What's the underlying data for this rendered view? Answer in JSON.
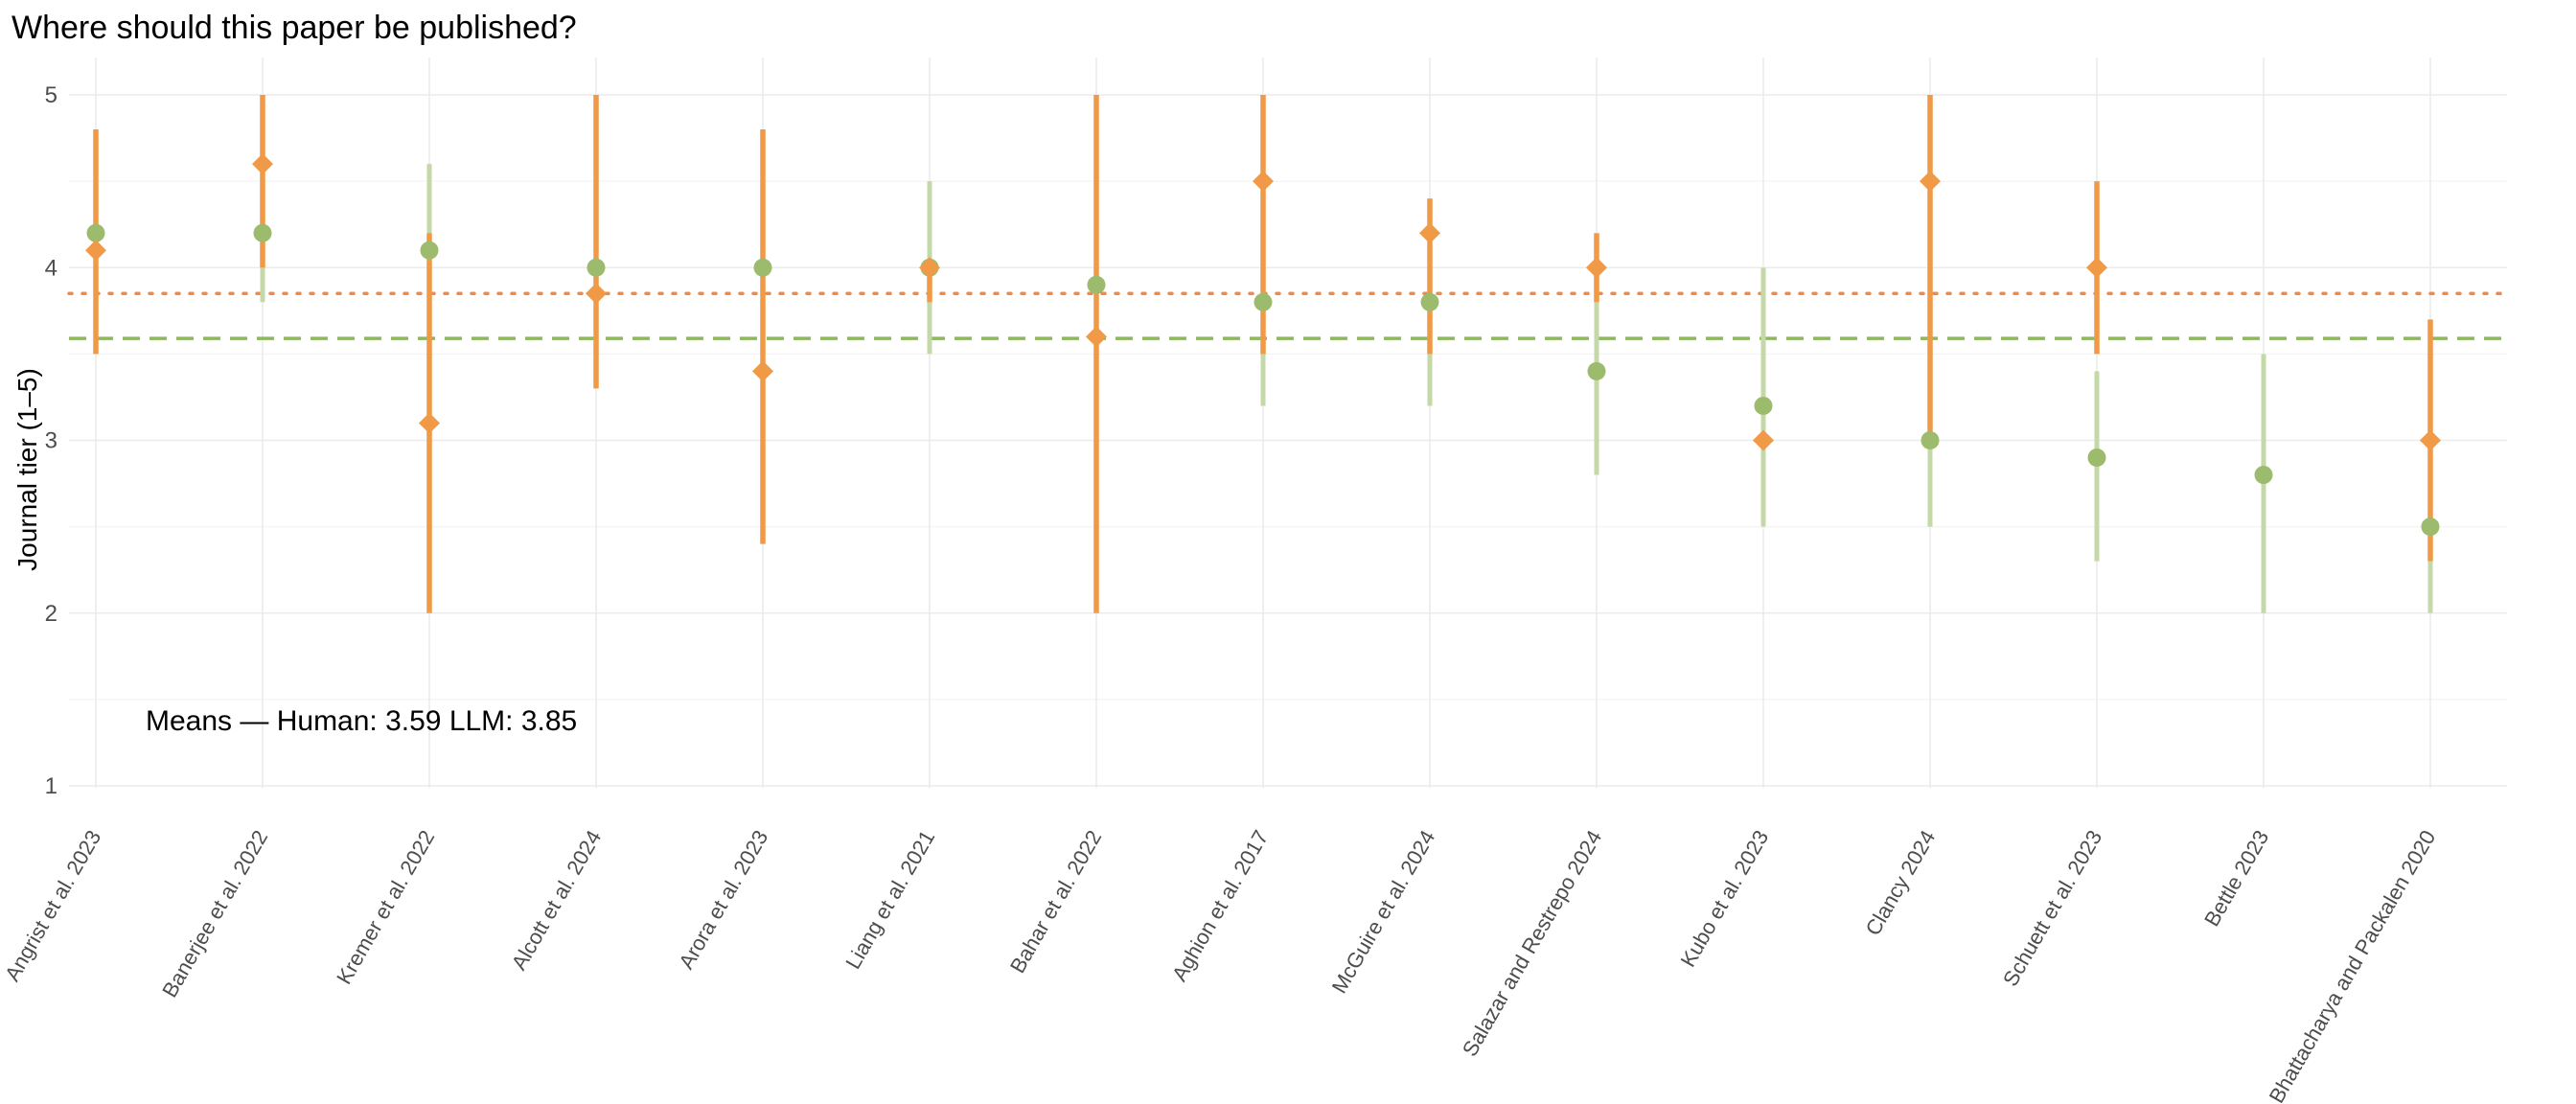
{
  "chart_data": {
    "type": "scatter",
    "title": "Where should this paper be published?",
    "xlabel": "",
    "ylabel": "Journal tier (1–5)",
    "ylim": [
      1,
      5
    ],
    "yticks": [
      "1",
      "2",
      "3",
      "4",
      "5"
    ],
    "grid": true,
    "legend": "none",
    "categories": [
      "Angrist et al. 2023",
      "Banerjee et al. 2022",
      "Kremer et al. 2022",
      "Alcott et al. 2024",
      "Arora et al. 2023",
      "Liang et al. 2021",
      "Bahar et al. 2022",
      "Aghion et al. 2017",
      "McGuire et al. 2024",
      "Salazar and Restrepo 2024",
      "Kubo et al. 2023",
      "Clancy 2024",
      "Schuett et al. 2023",
      "Bettle 2023",
      "Bhattacharya and Packalen 2020"
    ],
    "series": [
      {
        "marker": "circle",
        "color": "#9dbb6c",
        "interval_color": "#c5d9a8",
        "values": [
          4.2,
          4.2,
          4.1,
          4.0,
          4.0,
          4.0,
          3.9,
          3.8,
          3.8,
          3.4,
          3.2,
          3.0,
          2.9,
          2.8,
          2.5
        ],
        "lower": [
          null,
          3.8,
          3.2,
          null,
          null,
          3.5,
          null,
          3.2,
          3.2,
          2.8,
          2.5,
          2.5,
          2.3,
          2.0,
          2.0
        ],
        "upper": [
          null,
          4.2,
          4.6,
          null,
          null,
          4.5,
          null,
          4.0,
          4.0,
          4.0,
          4.0,
          4.0,
          3.4,
          3.5,
          2.3
        ]
      },
      {
        "marker": "diamond",
        "color": "#f09a48",
        "interval_color": "#f09a48",
        "values": [
          4.1,
          4.6,
          3.1,
          3.85,
          3.4,
          4.0,
          3.6,
          4.5,
          4.2,
          4.0,
          3.0,
          4.5,
          4.0,
          null,
          3.0
        ],
        "lower": [
          3.5,
          4.0,
          2.0,
          3.3,
          2.4,
          3.8,
          2.0,
          3.5,
          3.5,
          3.8,
          null,
          3.0,
          3.5,
          null,
          2.3
        ],
        "upper": [
          4.8,
          5.0,
          4.2,
          5.0,
          4.8,
          4.0,
          5.0,
          5.0,
          4.4,
          4.2,
          null,
          5.0,
          4.5,
          null,
          3.7
        ]
      }
    ],
    "reference_lines": [
      {
        "y": 3.59,
        "style": "dashed",
        "color": "#8fb85e"
      },
      {
        "y": 3.85,
        "style": "dotted",
        "color": "#f08a4b"
      }
    ],
    "annotation": "Means — Human: 3.59   LLM: 3.85"
  }
}
